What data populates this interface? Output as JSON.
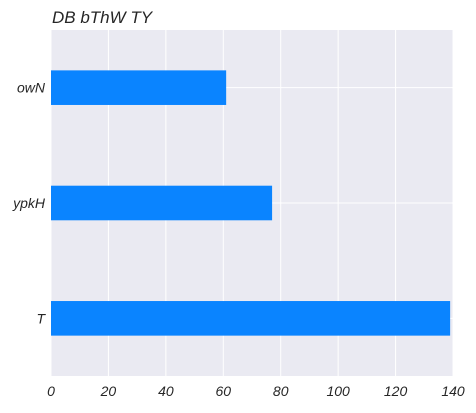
{
  "chart_data": {
    "type": "bar",
    "orientation": "horizontal",
    "title": "DB bThW  TY",
    "xlabel": "",
    "ylabel": "",
    "categories": [
      "owN",
      "ypkH",
      "T"
    ],
    "values": [
      61,
      77,
      139
    ],
    "xlim": [
      0,
      140
    ],
    "x_ticks": [
      "0",
      "20",
      "40",
      "60",
      "80",
      "100",
      "120",
      "140"
    ],
    "grid": true,
    "bar_color": "#0a84ff",
    "plot_background": "#eaeaf2",
    "grid_color": "#ffffff"
  }
}
